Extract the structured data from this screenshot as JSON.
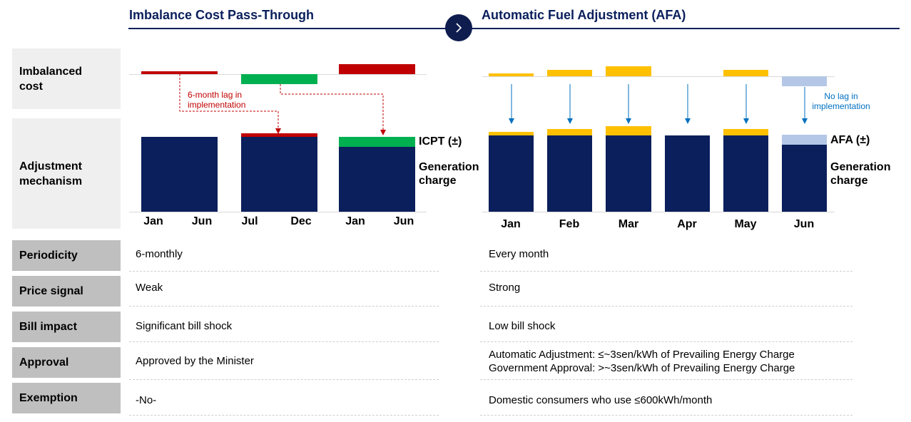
{
  "header": {
    "left_title": "Imbalance Cost Pass-Through",
    "right_title": "Automatic Fuel Adjustment (AFA)",
    "arrow_icon": "chevron-right-icon"
  },
  "row_labels": {
    "imbalanced_cost": "Imbalanced cost",
    "adjustment_mechanism": "Adjustment mechanism",
    "periodicity": "Periodicity",
    "price_signal": "Price signal",
    "bill_impact": "Bill impact",
    "approval": "Approval",
    "exemption": "Exemption"
  },
  "colors": {
    "navy": "#0a1f5c",
    "red": "#c00000",
    "green": "#00b050",
    "yellow": "#ffc000",
    "light_blue": "#b4c7e7",
    "arrow_blue": "#0070c0"
  },
  "left_chart": {
    "months": [
      "Jan",
      "Jun",
      "Jul",
      "Dec",
      "Jan",
      "Jun"
    ],
    "lag_note": "6-month lag in implementation",
    "icpt_label": "ICPT",
    "pm_symbol": "±",
    "generation_label": "Generation charge"
  },
  "right_chart": {
    "months": [
      "Jan",
      "Feb",
      "Mar",
      "Apr",
      "May",
      "Jun"
    ],
    "lag_note": "No lag in implementation",
    "afa_label": "AFA",
    "pm_symbol": "±",
    "generation_label": "Generation charge"
  },
  "table": {
    "left": {
      "periodicity": "6-monthly",
      "price_signal": "Weak",
      "bill_impact": "Significant bill shock",
      "approval": "Approved by the Minister",
      "exemption": "-No-"
    },
    "right": {
      "periodicity": "Every month",
      "price_signal": "Strong",
      "bill_impact": "Low bill shock",
      "approval_line1": "Automatic Adjustment: ≤~3sen/kWh of Prevailing Energy Charge",
      "approval_line2": "Government Approval: >~3sen/kWh of Prevailing Energy Charge",
      "exemption": "Domestic consumers who use ≤600kWh/month"
    }
  }
}
